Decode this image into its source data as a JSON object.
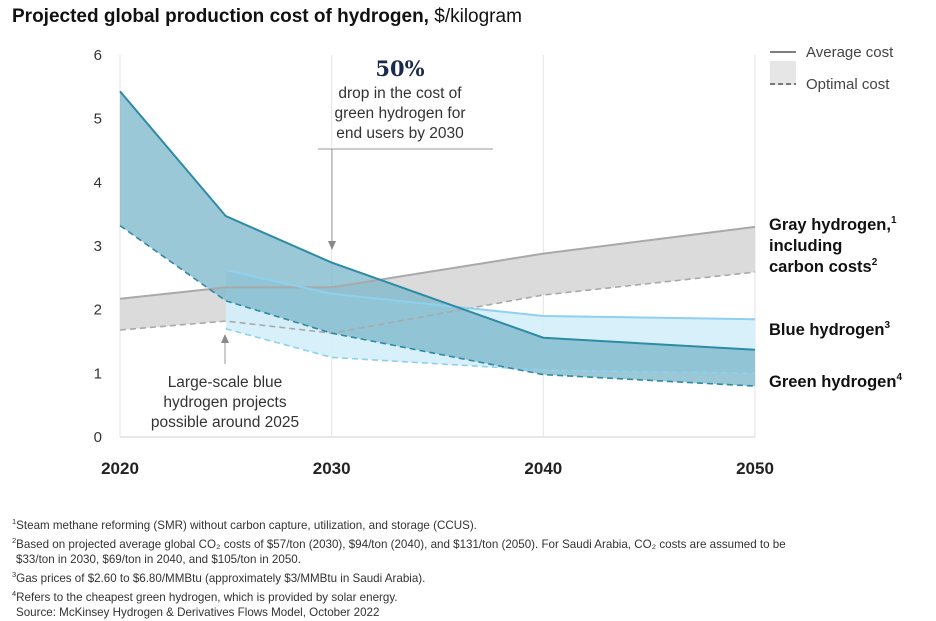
{
  "title_bold": "Projected global production cost of hydrogen,",
  "title_unit": " $/kilogram",
  "legend": {
    "average": "Average cost",
    "optimal": "Optimal cost"
  },
  "annotations": {
    "top_value": "50%",
    "top_lines": [
      "drop in the cost of",
      "green hydrogen for",
      "end users by 2030"
    ],
    "bottom_lines": [
      "Large-scale blue",
      "hydrogen projects",
      "possible around 2025"
    ]
  },
  "series_labels": {
    "gray_l1": "Gray hydrogen,",
    "gray_l1_sup": "1",
    "gray_l2": "including",
    "gray_l3": "carbon costs",
    "gray_l3_sup": "2",
    "blue": "Blue hydrogen",
    "blue_sup": "3",
    "green": "Green hydrogen",
    "green_sup": "4"
  },
  "footnotes": [
    {
      "sup": "1",
      "text": "Steam methane reforming (SMR) without carbon capture, utilization, and storage (CCUS)."
    },
    {
      "sup": "2",
      "text": "Based on projected average global CO₂ costs of $57/ton (2030), $94/ton (2040), and $131/ton (2050). For Saudi Arabia, CO₂ costs are assumed to be"
    },
    {
      "sup": "",
      "text": "$33/ton in 2030, $69/ton in 2040, and $105/ton in 2050."
    },
    {
      "sup": "3",
      "text": "Gas prices of $2.60 to $6.80/MMBtu (approximately $3/MMBtu in Saudi Arabia)."
    },
    {
      "sup": "4",
      "text": "Refers to the cheapest green hydrogen, which is provided by solar energy."
    },
    {
      "sup": "",
      "text": "Source: McKinsey Hydrogen & Derivatives Flows Model, October 2022"
    }
  ],
  "chart_data": {
    "type": "area",
    "x": [
      2020,
      2025,
      2030,
      2040,
      2050
    ],
    "xticks": [
      2020,
      2030,
      2040,
      2050
    ],
    "yticks": [
      0,
      1,
      2,
      3,
      4,
      5,
      6
    ],
    "ylim": [
      0,
      6
    ],
    "xlim": [
      2020,
      2050
    ],
    "colors": {
      "gray_fill": "#d9d9da",
      "gray_line": "#a8a9ab",
      "blue_fill": "#d3eef9",
      "blue_line": "#8fd0ee",
      "green_fill": "#7db9ca",
      "green_line": "#2e8aa5"
    },
    "series": [
      {
        "name": "Gray hydrogen, including carbon costs",
        "x": [
          2020,
          2025,
          2030,
          2040,
          2050
        ],
        "average": [
          2.17,
          2.35,
          2.35,
          2.88,
          3.3
        ],
        "optimal": [
          1.68,
          1.82,
          1.63,
          2.23,
          2.59
        ]
      },
      {
        "name": "Blue hydrogen",
        "x": [
          2025,
          2030,
          2040,
          2050
        ],
        "average": [
          2.62,
          2.25,
          1.9,
          1.85
        ],
        "optimal": [
          1.7,
          1.25,
          1.05,
          1.0
        ]
      },
      {
        "name": "Green hydrogen",
        "x": [
          2020,
          2025,
          2030,
          2040,
          2050
        ],
        "average": [
          5.43,
          3.47,
          2.74,
          1.56,
          1.37
        ],
        "optimal": [
          3.32,
          2.14,
          1.63,
          0.98,
          0.8
        ]
      }
    ]
  }
}
